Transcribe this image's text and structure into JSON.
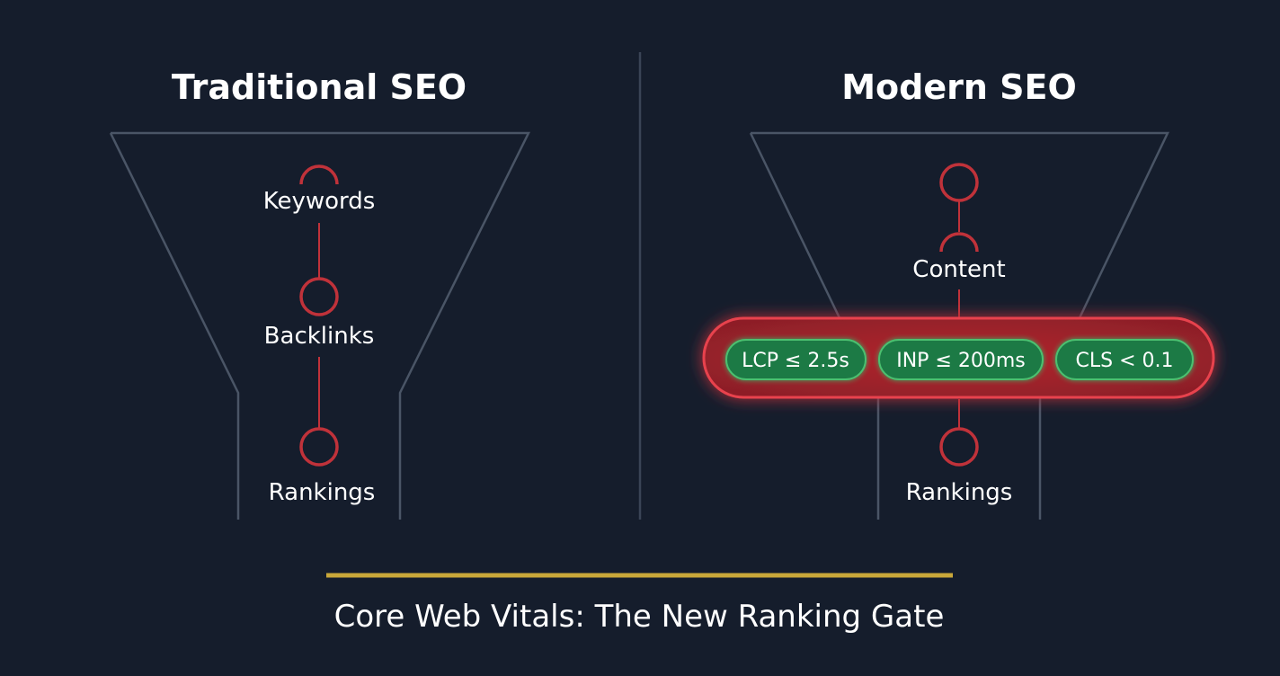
{
  "left": {
    "title": "Traditional SEO",
    "stages": [
      "Keywords",
      "Backlinks",
      "Rankings"
    ]
  },
  "right": {
    "title": "Modern SEO",
    "stages": [
      "Content",
      "Rankings"
    ],
    "gate_metrics": [
      "LCP ≤ 2.5s",
      "INP ≤ 200ms",
      "CLS < 0.1"
    ]
  },
  "caption": "Core Web Vitals: The New Ranking Gate",
  "colors": {
    "background": "#151d2c",
    "node": "#c0323a",
    "gate": "#b3262e",
    "metric_pill": "#1f7a45",
    "accent_line": "#c9a83a"
  }
}
